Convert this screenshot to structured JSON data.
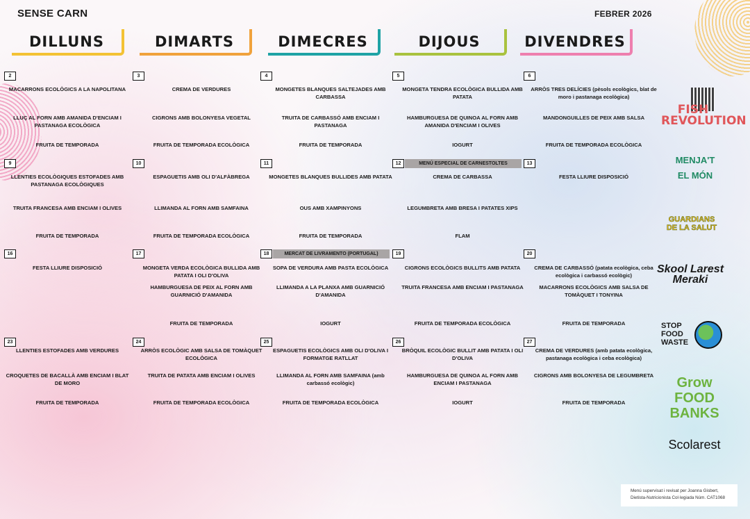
{
  "header": {
    "left": "SENSE CARN",
    "right": "FEBRER 2026"
  },
  "days": [
    {
      "label": "DILLUNS",
      "color": "#f3c234"
    },
    {
      "label": "DIMARTS",
      "color": "#f0a23c"
    },
    {
      "label": "DIMECRES",
      "color": "#1fa3a5"
    },
    {
      "label": "DIJOUS",
      "color": "#a9c23f"
    },
    {
      "label": "DIVENDRES",
      "color": "#ee7fae"
    }
  ],
  "weeks": [
    [
      {
        "num": "2",
        "dishes": [
          "MACARRONS ECOLÒGICS A LA NAPOLITANA",
          "LLUÇ AL FORN AMB AMANIDA D'ENCIAM I PASTANAGA ECOLÒGICA",
          "FRUITA DE TEMPORADA"
        ]
      },
      {
        "num": "3",
        "dishes": [
          "CREMA DE VERDURES",
          "CIGRONS AMB BOLONYESA VEGETAL",
          "FRUITA DE TEMPORADA ECOLÒGICA"
        ]
      },
      {
        "num": "4",
        "dishes": [
          "MONGETES BLANQUES SALTEJADES AMB CARBASSA",
          "TRUITA DE CARBASSÓ AMB ENCIAM I PASTANAGA",
          "FRUITA DE TEMPORADA"
        ]
      },
      {
        "num": "5",
        "dishes": [
          "MONGETA TENDRA ECOLÒGICA BULLIDA AMB PATATA",
          "HAMBURGUESA DE QUINOA AL FORN AMB AMANIDA D'ENCIAM I OLIVES",
          "IOGURT"
        ]
      },
      {
        "num": "6",
        "dishes": [
          "ARRÒS TRES DELÍCIES (pèsols ecològics, blat de moro i pastanaga ecològica)",
          "MANDONGUILLES DE PEIX AMB SALSA",
          "FRUITA DE TEMPORADA ECOLÒGICA"
        ]
      }
    ],
    [
      {
        "num": "9",
        "dishes": [
          "LLENTIES ECOLÒGIQUES ESTOFADES AMB PASTANAGA ECOLÒGIQUES",
          "TRUITA FRANCESA AMB ENCIAM I OLIVES",
          "FRUITA DE TEMPORADA"
        ]
      },
      {
        "num": "10",
        "dishes": [
          "ESPAGUETIS AMB OLI D'ALFÀBREGA",
          "LLIMANDA AL FORN AMB SAMFAINA",
          "FRUITA DE TEMPORADA ECOLÒGICA"
        ]
      },
      {
        "num": "11",
        "dishes": [
          "MONGETES BLANQUES BULLIDES AMB PATATA",
          "OUS AMB XAMPINYONS",
          "FRUITA DE TEMPORADA"
        ]
      },
      {
        "num": "12",
        "banner": "MENÚ ESPECIAL DE CARNESTOLTES",
        "dishes": [
          "CREMA DE CARBASSA",
          "LEGUMBRETA AMB BRESA I PATATES XIPS",
          "FLAM"
        ]
      },
      {
        "num": "13",
        "dishes": [
          "FESTA LLIURE DISPOSICIÓ",
          "",
          ""
        ]
      }
    ],
    [
      {
        "num": "16",
        "dishes": [
          "FESTA LLIURE DISPOSICIÓ",
          "",
          ""
        ]
      },
      {
        "num": "17",
        "dishes": [
          "MONGETA VERDA ECOLÒGICA BULLIDA AMB PATATA I OLI D'OLIVA",
          "HAMBURGUESA DE PEIX AL FORN AMB GUARNICIÓ D'AMANIDA",
          "FRUITA DE TEMPORADA"
        ]
      },
      {
        "num": "18",
        "banner": "MERCAT DE LIVRAMENTO (PORTUGAL)",
        "dishes": [
          "SOPA DE VERDURA AMB PASTA ECOLÒGICA",
          "LLIMANDA A LA PLANXA AMB GUARNICIÓ D'AMANIDA",
          "IOGURT"
        ]
      },
      {
        "num": "19",
        "dishes": [
          "CIGRONS ECOLÒGICS BULLITS AMB PATATA",
          "TRUITA FRANCESA AMB ENCIAM I PASTANAGA",
          "FRUITA DE TEMPORADA ECOLÒGICA"
        ]
      },
      {
        "num": "20",
        "dishes": [
          "CREMA DE CARBASSÓ (patata ecològica, ceba ecològica i carbassó ecològic)",
          "MACARRONS ECOLÒGICS AMB SALSA DE TOMÀQUET I TONYINA",
          "FRUITA DE TEMPORADA"
        ]
      }
    ],
    [
      {
        "num": "23",
        "dishes": [
          "LLENTIES ESTOFADES AMB VERDURES",
          "CROQUETES DE BACALLÀ AMB ENCIAM I BLAT DE MORO",
          "FRUITA DE TEMPORADA"
        ]
      },
      {
        "num": "24",
        "dishes": [
          "ARRÒS ECOLÒGIC AMB SALSA DE TOMÀQUET ECOLÒGICA",
          "TRUITA DE PATATA AMB ENCIAM I OLIVES",
          "FRUITA DE TEMPORADA ECOLÒGICA"
        ]
      },
      {
        "num": "25",
        "dishes": [
          "ESPAGUETIS ECOLÒGICS AMB OLI D'OLIVA I FORMATGE RATLLAT",
          "LLIMANDA AL FORN AMB SAMFAINA (amb carbassó ecològic)",
          "FRUITA DE TEMPORADA ECOLÒGICA"
        ]
      },
      {
        "num": "26",
        "dishes": [
          "BRÒQUIL ECOLÒGIC BULLIT AMB PATATA I OLI D'OLIVA",
          "HAMBURGUESA DE QUINOA AL FORN AMB ENCIAM I PASTANAGA",
          "IOGURT"
        ]
      },
      {
        "num": "27",
        "dishes": [
          "CREMA DE VERDURES (amb patata ecològica, pastanaga ecològica i ceba ecològica)",
          "CIGRONS AMB BOLONYESA DE LEGUMBRETA",
          "FRUITA DE TEMPORADA"
        ]
      }
    ]
  ],
  "logos": {
    "fish": "FISH REVOLUTION",
    "menjat": "MENJA'T EL MÓN",
    "guardians": "GUARDIANS DE LA SALUT",
    "skool": "Skool Larest Meraki",
    "stop": "STOP FOOD WASTE",
    "grow": "Grow FOOD BANKS",
    "scolarest": "Scolarest"
  },
  "footer_note": [
    "Menú supervisat i revisat per Joanna Gisbert,",
    "Dietista-Nutricionista Col·legiada Núm. CAT1068"
  ]
}
